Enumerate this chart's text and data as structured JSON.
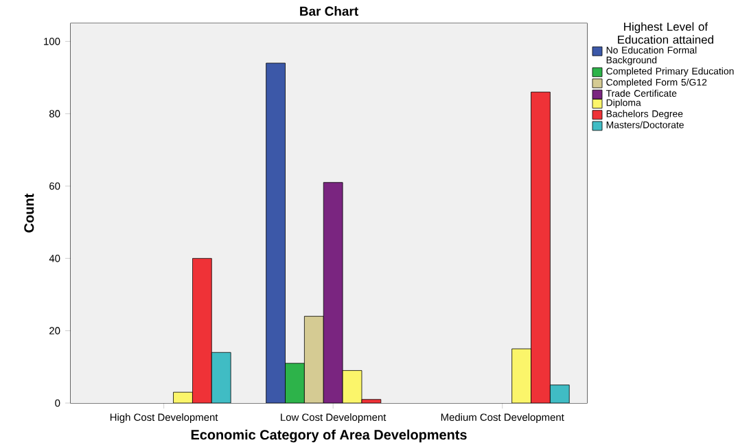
{
  "chart_data": {
    "type": "bar",
    "title": "Bar Chart",
    "xlabel": "Economic Category of Area Developments",
    "ylabel": "Count",
    "legend_title": "Highest Level of Education attained",
    "categories": [
      "High Cost Development",
      "Low Cost Development",
      "Medium Cost Development"
    ],
    "series": [
      {
        "name": "No Education Formal Background",
        "color": "#3c58a8",
        "values": [
          null,
          94,
          null
        ]
      },
      {
        "name": "Completed Primary Education",
        "color": "#2db34a",
        "values": [
          null,
          11,
          null
        ]
      },
      {
        "name": "Completed Form 5/G12",
        "color": "#d5cb93",
        "values": [
          null,
          24,
          null
        ]
      },
      {
        "name": "Trade Certificate",
        "color": "#7a2580",
        "values": [
          null,
          61,
          null
        ]
      },
      {
        "name": "Diploma",
        "color": "#fbf56a",
        "values": [
          3,
          9,
          15
        ]
      },
      {
        "name": "Bachelors Degree",
        "color": "#ef3237",
        "values": [
          40,
          1,
          86
        ]
      },
      {
        "name": "Masters/Doctorate",
        "color": "#40bcc4",
        "values": [
          14,
          null,
          5
        ]
      }
    ],
    "ylim": [
      0,
      105
    ],
    "yticks": [
      0,
      20,
      40,
      60,
      80,
      100
    ],
    "grid": false,
    "legend": "top right"
  }
}
